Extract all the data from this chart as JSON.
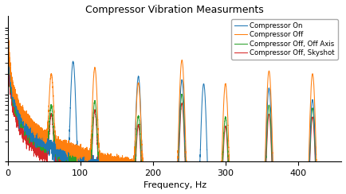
{
  "title": "Compressor Vibration Measurments",
  "xlabel": "Frequency, Hz",
  "xlim": [
    0,
    460
  ],
  "legend": [
    {
      "label": "Compressor On",
      "color": "#1f77b4"
    },
    {
      "label": "Compressor Off",
      "color": "#ff7f0e"
    },
    {
      "label": "Compressor Off, Off Axis",
      "color": "#2ca02c"
    },
    {
      "label": "Compressor Off, Skyshot",
      "color": "#d62728"
    }
  ],
  "peaks_off": [
    {
      "freq": 60,
      "amp": 0.018
    },
    {
      "freq": 120,
      "amp": 0.024
    },
    {
      "freq": 180,
      "amp": 0.014
    },
    {
      "freq": 240,
      "amp": 0.032
    },
    {
      "freq": 300,
      "amp": 0.014
    },
    {
      "freq": 360,
      "amp": 0.022
    },
    {
      "freq": 420,
      "amp": 0.02
    }
  ],
  "peaks_on": [
    {
      "freq": 90,
      "amp": 0.03
    },
    {
      "freq": 180,
      "amp": 0.018
    },
    {
      "freq": 240,
      "amp": 0.016
    },
    {
      "freq": 270,
      "amp": 0.014
    },
    {
      "freq": 360,
      "amp": 0.012
    },
    {
      "freq": 420,
      "amp": 0.008
    }
  ],
  "background_color": "#ffffff",
  "figsize": [
    4.34,
    2.44
  ],
  "dpi": 100
}
